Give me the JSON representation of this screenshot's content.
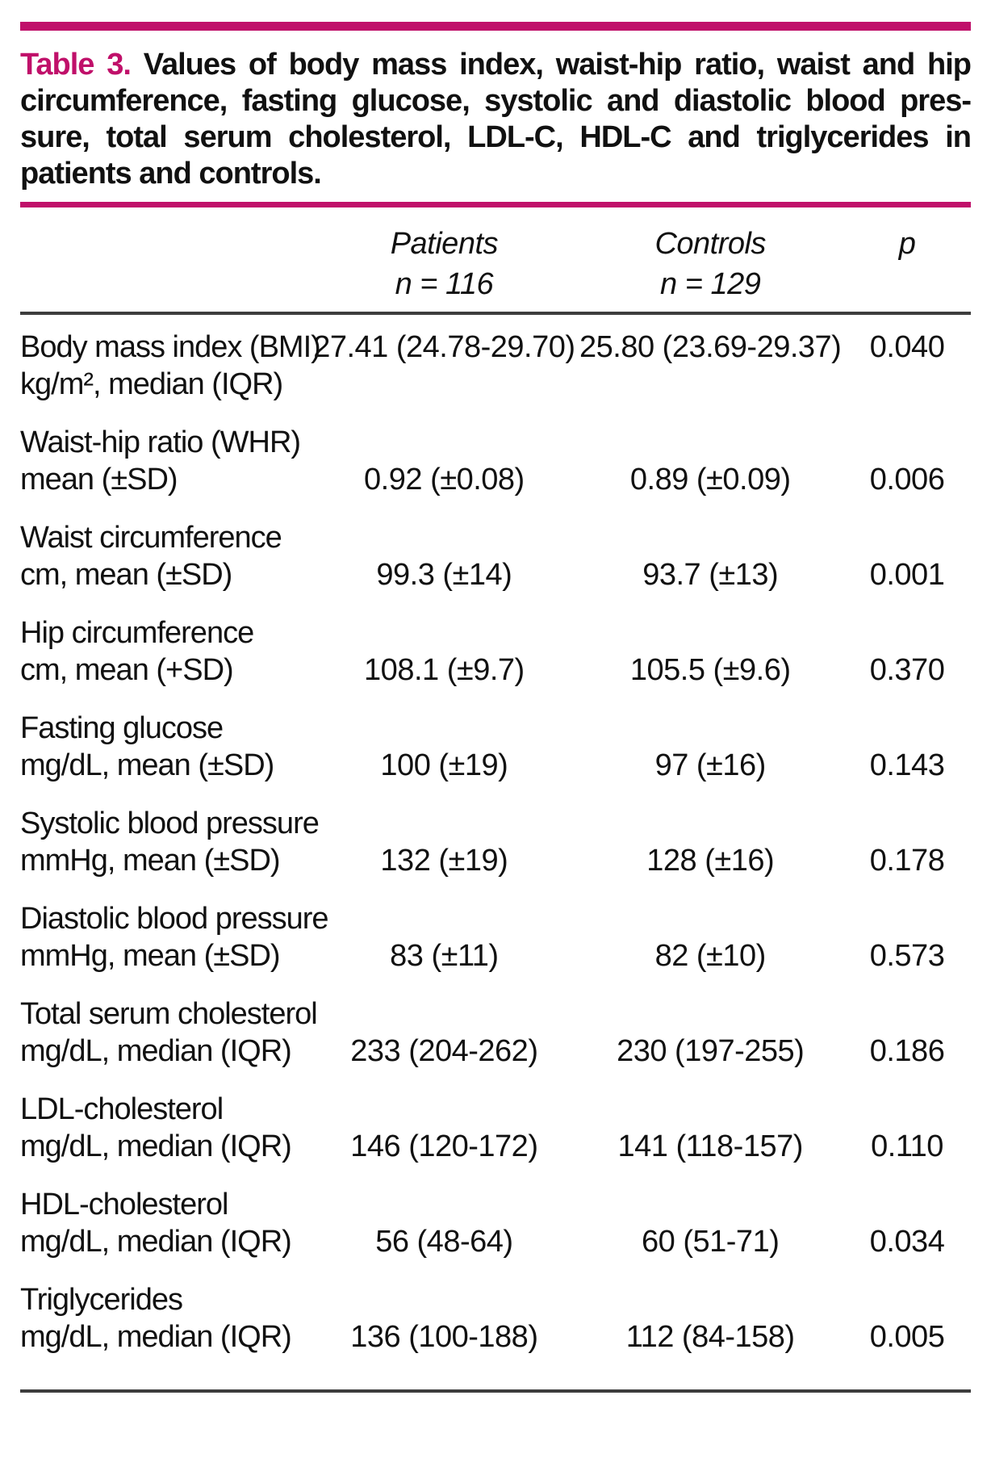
{
  "colors": {
    "accent_pink": "#c0106a",
    "rule_dark": "#3d3d3d",
    "text": "#111111"
  },
  "table": {
    "label": "Table 3.",
    "caption_lines": [
      "Values of body mass index, waist-hip ratio, waist and hip",
      "circumference, fasting glucose, systolic and diastolic blood pres-",
      "sure, total serum cholesterol, LDL-C, HDL-C and triglycerides in",
      "patients and controls."
    ],
    "columns": {
      "patients": {
        "name": "Patients",
        "n": "n = 116"
      },
      "controls": {
        "name": "Controls",
        "n": "n = 129"
      },
      "p": "p"
    },
    "rows": [
      {
        "label1": "Body mass index (BMI)",
        "label2": "kg/m², median (IQR)",
        "patients": "27.41 (24.78-29.70)",
        "controls": "25.80 (23.69-29.37)",
        "p": "0.040"
      },
      {
        "label1": "Waist-hip ratio (WHR)",
        "label2": "mean (±SD)",
        "patients": "0.92 (±0.08)",
        "controls": "0.89 (±0.09)",
        "p": "0.006"
      },
      {
        "label1": "Waist circumference",
        "label2": "cm, mean (±SD)",
        "patients": "99.3 (±14)",
        "controls": "93.7 (±13)",
        "p": "0.001"
      },
      {
        "label1": "Hip circumference",
        "label2": "cm, mean (+SD)",
        "patients": "108.1 (±9.7)",
        "controls": "105.5 (±9.6)",
        "p": "0.370"
      },
      {
        "label1": "Fasting glucose",
        "label2": "mg/dL, mean (±SD)",
        "patients": "100 (±19)",
        "controls": "97 (±16)",
        "p": "0.143"
      },
      {
        "label1": "Systolic blood pressure",
        "label2": "mmHg, mean (±SD)",
        "patients": "132 (±19)",
        "controls": "128 (±16)",
        "p": "0.178"
      },
      {
        "label1": "Diastolic blood pressure",
        "label2": "mmHg, mean (±SD)",
        "patients": "83 (±11)",
        "controls": "82 (±10)",
        "p": "0.573"
      },
      {
        "label1": "Total serum cholesterol",
        "label2": "mg/dL, median (IQR)",
        "patients": "233 (204-262)",
        "controls": "230 (197-255)",
        "p": "0.186"
      },
      {
        "label1": "LDL-cholesterol",
        "label2": "mg/dL, median (IQR)",
        "patients": "146 (120-172)",
        "controls": "141 (118-157)",
        "p": "0.110"
      },
      {
        "label1": "HDL-cholesterol",
        "label2": "mg/dL, median (IQR)",
        "patients": "56 (48-64)",
        "controls": "60 (51-71)",
        "p": "0.034"
      },
      {
        "label1": "Triglycerides",
        "label2": "mg/dL, median (IQR)",
        "patients": "136 (100-188)",
        "controls": "112 (84-158)",
        "p": "0.005"
      }
    ]
  }
}
